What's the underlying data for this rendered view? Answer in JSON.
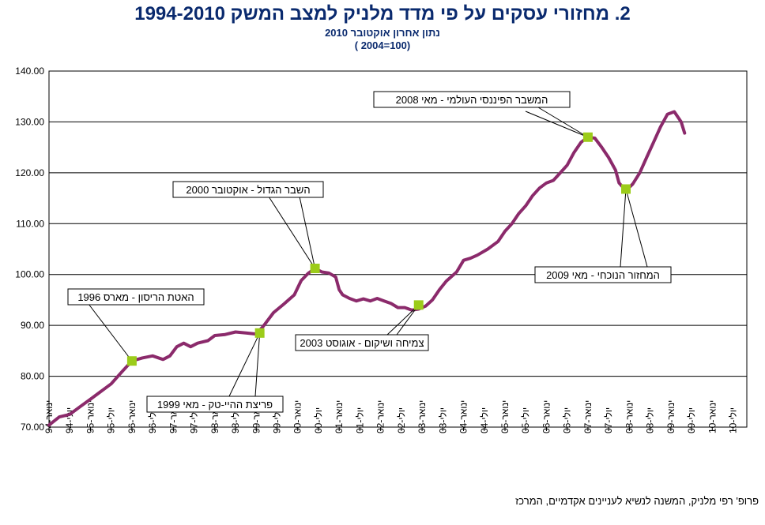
{
  "title": "2.   מחזורי עסקים על פי מדד מלניק למצב המשק 1994-2010",
  "subtitle1": "נתון אחרון אוקטובר 2010",
  "subtitle2": "( 2004=100)",
  "footer": "פרופ' רפי מלניק, המשנה לנשיא לעניינים אקדמיים, המרכז",
  "colors": {
    "line": "#8b2a6b",
    "marker": "#9ccc1a",
    "grid": "#000000",
    "text": "#0a2a6e"
  },
  "chart_data": {
    "type": "line",
    "ylim": [
      70,
      140
    ],
    "yticks": [
      "70.00",
      "80.00",
      "90.00",
      "100.00",
      "110.00",
      "120.00",
      "130.00",
      "140.00"
    ],
    "xlim": [
      0,
      202
    ],
    "xtick_step": 6,
    "xticks": [
      "ינואר-94",
      "יולי-94",
      "ינואר-95",
      "יולי-95",
      "ינואר-96",
      "יולי-96",
      "ינואר-97",
      "יולי-97",
      "ינואר-98",
      "יולי-98",
      "ינואר-99",
      "יולי-99",
      "ינואר-00",
      "יולי-00",
      "ינואר-01",
      "יולי-01",
      "ינואר-02",
      "יולי-02",
      "ינואר-03",
      "יולי-03",
      "ינואר-04",
      "יולי-04",
      "ינואר-05",
      "יולי-05",
      "ינואר-06",
      "יולי-06",
      "ינואר-07",
      "יולי-07",
      "ינואר-08",
      "יולי-08",
      "ינואר-09",
      "יולי-09",
      "ינואר-10",
      "יולי-10"
    ],
    "series": [
      {
        "points": [
          [
            0,
            70.4
          ],
          [
            3,
            72
          ],
          [
            6,
            72.5
          ],
          [
            9,
            74
          ],
          [
            12,
            75.5
          ],
          [
            15,
            77
          ],
          [
            18,
            78.5
          ],
          [
            21,
            80.8
          ],
          [
            24,
            83
          ],
          [
            27,
            83.6
          ],
          [
            30,
            84
          ],
          [
            33,
            83.3
          ],
          [
            35,
            84
          ],
          [
            37,
            85.8
          ],
          [
            39,
            86.5
          ],
          [
            41,
            85.8
          ],
          [
            43,
            86.5
          ],
          [
            46,
            87
          ],
          [
            48,
            88
          ],
          [
            51,
            88.2
          ],
          [
            54,
            88.7
          ],
          [
            57,
            88.5
          ],
          [
            60,
            88.3
          ],
          [
            62,
            89.8
          ],
          [
            65,
            92.5
          ],
          [
            68,
            94.2
          ],
          [
            71,
            96
          ],
          [
            73,
            98.8
          ],
          [
            75,
            100.2
          ],
          [
            77,
            101.2
          ],
          [
            79,
            100.5
          ],
          [
            81,
            100.3
          ],
          [
            83,
            99.5
          ],
          [
            84,
            97
          ],
          [
            85,
            96
          ],
          [
            87,
            95.3
          ],
          [
            89,
            94.8
          ],
          [
            91,
            95.2
          ],
          [
            93,
            94.8
          ],
          [
            95,
            95.3
          ],
          [
            97,
            94.8
          ],
          [
            99,
            94.3
          ],
          [
            101,
            93.5
          ],
          [
            103,
            93.5
          ],
          [
            105,
            93
          ],
          [
            107,
            93.2
          ],
          [
            109,
            93.8
          ],
          [
            111,
            95
          ],
          [
            113,
            97
          ],
          [
            115,
            98.7
          ],
          [
            118,
            100.5
          ],
          [
            120,
            102.8
          ],
          [
            122,
            103.2
          ],
          [
            124,
            103.8
          ],
          [
            127,
            105
          ],
          [
            130,
            106.5
          ],
          [
            132,
            108.5
          ],
          [
            134,
            110
          ],
          [
            136,
            112
          ],
          [
            138,
            113.5
          ],
          [
            140,
            115.5
          ],
          [
            142,
            117
          ],
          [
            144,
            118
          ],
          [
            146,
            118.5
          ],
          [
            148,
            120
          ],
          [
            150,
            121.5
          ],
          [
            152,
            124
          ],
          [
            154,
            126
          ],
          [
            156,
            127
          ],
          [
            158,
            126.8
          ],
          [
            160,
            125
          ],
          [
            162,
            123
          ],
          [
            164,
            120.5
          ],
          [
            165,
            118
          ],
          [
            167,
            116.5
          ],
          [
            169,
            117.8
          ],
          [
            171,
            120
          ],
          [
            173,
            123
          ],
          [
            175,
            126
          ],
          [
            177,
            129
          ],
          [
            179,
            131.5
          ],
          [
            181,
            132
          ],
          [
            183,
            130
          ],
          [
            184,
            127.8
          ]
        ]
      }
    ],
    "markers": [
      [
        24,
        83
      ],
      [
        61,
        88.5
      ],
      [
        77,
        101.2
      ],
      [
        107,
        94
      ],
      [
        156,
        127
      ],
      [
        167,
        116.8
      ]
    ],
    "annotations": [
      {
        "text": "האטת הריסון - מארס 1996",
        "target": 0
      },
      {
        "text": "פריצת ההיי-טק - מאי 1999",
        "target": 1
      },
      {
        "text": "השבר הגדול - אוקטובר 2000",
        "target": 2
      },
      {
        "text": "צמיחה ושיקום - אוגוסט 2003",
        "target": 3
      },
      {
        "text": "המשבר הפיננסי העולמי - מאי 2008",
        "target": 4
      },
      {
        "text": "המחזור הנוכחי - מאי 2009",
        "target": 5
      }
    ]
  }
}
